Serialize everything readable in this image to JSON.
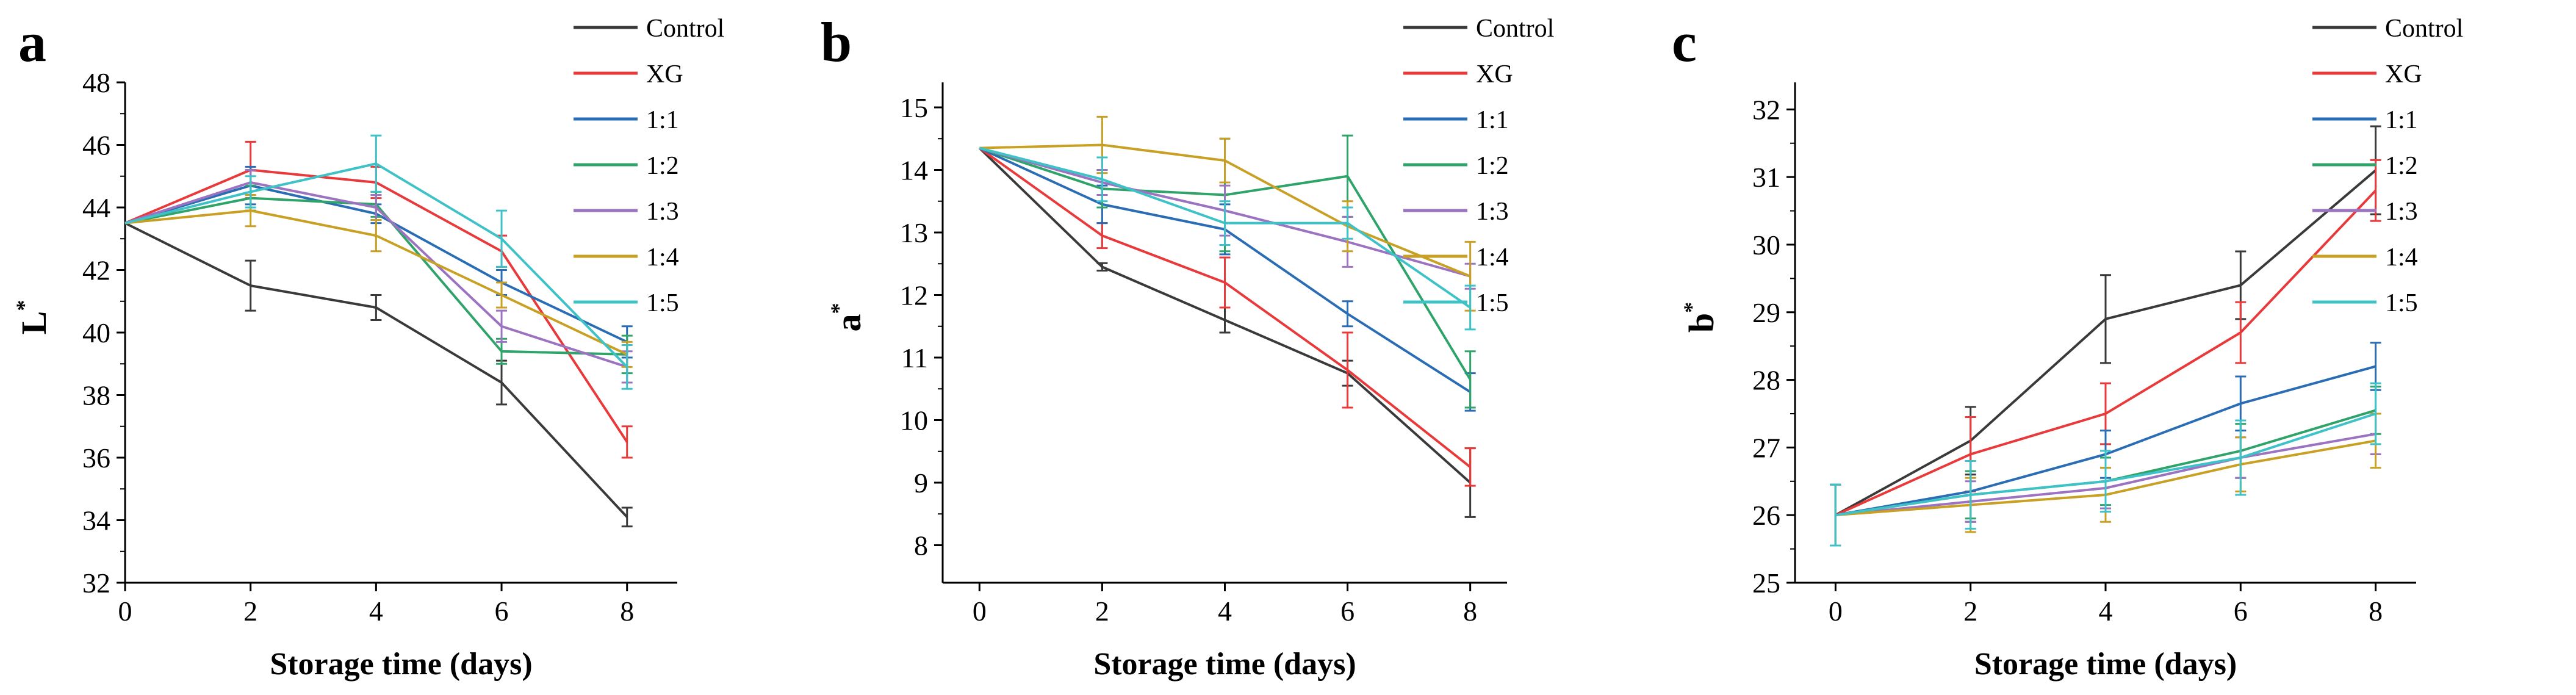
{
  "chart_data": [
    {
      "type": "line",
      "panel_label": "a",
      "title": "",
      "xlabel": "Storage time (days)",
      "ylabel": "L",
      "ylabel_sup": "*",
      "x": [
        0,
        2,
        4,
        6,
        8
      ],
      "xticks": [
        "0",
        "2",
        "4",
        "6",
        "8"
      ],
      "xlim": [
        0,
        8.8
      ],
      "ylim": [
        32,
        48
      ],
      "yticks": [
        "32",
        "34",
        "36",
        "38",
        "40",
        "42",
        "44",
        "46",
        "48"
      ],
      "grid": false,
      "legend": "top-right",
      "series": [
        {
          "name": "Control",
          "color": "#3a3a3a",
          "values": [
            43.5,
            41.5,
            40.8,
            38.4,
            34.1
          ],
          "errors": [
            0,
            0.8,
            0.4,
            0.7,
            0.3
          ]
        },
        {
          "name": "XG",
          "color": "#e8393b",
          "values": [
            43.5,
            45.2,
            44.8,
            42.6,
            36.5
          ],
          "errors": [
            0,
            0.9,
            0.5,
            0.5,
            0.5
          ]
        },
        {
          "name": "1:1",
          "color": "#2a6db5",
          "values": [
            43.5,
            44.7,
            43.8,
            41.6,
            39.7
          ],
          "errors": [
            0,
            0.6,
            0.3,
            0.4,
            0.5
          ]
        },
        {
          "name": "1:2",
          "color": "#30a36b",
          "values": [
            43.5,
            44.3,
            44.1,
            39.4,
            39.3
          ],
          "errors": [
            0,
            0.4,
            0.4,
            0.4,
            0.6
          ]
        },
        {
          "name": "1:3",
          "color": "#9c73c0",
          "values": [
            43.5,
            44.8,
            44.0,
            40.2,
            38.9
          ],
          "errors": [
            0,
            0.4,
            0.4,
            0.5,
            0.5
          ]
        },
        {
          "name": "1:4",
          "color": "#c8a024",
          "values": [
            43.5,
            43.9,
            43.1,
            41.2,
            39.3
          ],
          "errors": [
            0,
            0.5,
            0.5,
            0.4,
            0.4
          ]
        },
        {
          "name": "1:5",
          "color": "#3ec2c8",
          "values": [
            43.5,
            44.5,
            45.4,
            43.0,
            38.9
          ],
          "errors": [
            0,
            0.5,
            0.9,
            0.9,
            0.7
          ]
        }
      ]
    },
    {
      "type": "line",
      "panel_label": "b",
      "title": "",
      "xlabel": "Storage time (days)",
      "ylabel": "a",
      "ylabel_sup": "*",
      "x": [
        0,
        2,
        4,
        6,
        8
      ],
      "xticks": [
        "0",
        "2",
        "4",
        "6",
        "8"
      ],
      "xlim": [
        -0.6,
        8.6
      ],
      "ylim": [
        7.4,
        15.4
      ],
      "yticks": [
        "8",
        "9",
        "10",
        "11",
        "12",
        "13",
        "14",
        "15"
      ],
      "grid": false,
      "legend": "top-right",
      "series": [
        {
          "name": "Control",
          "color": "#3a3a3a",
          "values": [
            14.35,
            12.45,
            11.6,
            10.75,
            9.0
          ],
          "errors": [
            0,
            0.06,
            0.2,
            0.2,
            0.55
          ]
        },
        {
          "name": "XG",
          "color": "#e8393b",
          "values": [
            14.35,
            12.95,
            12.2,
            10.8,
            9.25
          ],
          "errors": [
            0,
            0.2,
            0.4,
            0.6,
            0.3
          ]
        },
        {
          "name": "1:1",
          "color": "#2a6db5",
          "values": [
            14.35,
            13.45,
            13.05,
            11.7,
            10.45
          ],
          "errors": [
            0,
            0.3,
            0.4,
            0.2,
            0.3
          ]
        },
        {
          "name": "1:2",
          "color": "#30a36b",
          "values": [
            14.35,
            13.7,
            13.6,
            13.9,
            10.65
          ],
          "errors": [
            0,
            0.3,
            0.9,
            0.65,
            0.45
          ]
        },
        {
          "name": "1:3",
          "color": "#9c73c0",
          "values": [
            14.35,
            13.8,
            13.35,
            12.85,
            12.3
          ],
          "errors": [
            0,
            0.2,
            0.4,
            0.4,
            0.2
          ]
        },
        {
          "name": "1:4",
          "color": "#c8a024",
          "values": [
            14.35,
            14.4,
            14.15,
            13.1,
            12.3
          ],
          "errors": [
            0,
            0.45,
            0.35,
            0.4,
            0.55
          ]
        },
        {
          "name": "1:5",
          "color": "#3ec2c8",
          "values": [
            14.35,
            13.85,
            13.15,
            13.15,
            11.8
          ],
          "errors": [
            0,
            0.35,
            0.35,
            0.25,
            0.35
          ]
        }
      ]
    },
    {
      "type": "line",
      "panel_label": "c",
      "title": "",
      "xlabel": "Storage time (days)",
      "ylabel": "b",
      "ylabel_sup": "*",
      "x": [
        0,
        2,
        4,
        6,
        8
      ],
      "xticks": [
        "0",
        "2",
        "4",
        "6",
        "8"
      ],
      "xlim": [
        -0.6,
        8.6
      ],
      "ylim": [
        25,
        32.4
      ],
      "yticks": [
        "25",
        "26",
        "27",
        "28",
        "29",
        "30",
        "31",
        "32"
      ],
      "grid": false,
      "legend": "top-right",
      "series": [
        {
          "name": "Control",
          "color": "#3a3a3a",
          "values": [
            26.0,
            27.1,
            28.9,
            29.4,
            31.1
          ],
          "errors": [
            0.45,
            0.5,
            0.65,
            0.5,
            0.65
          ]
        },
        {
          "name": "XG",
          "color": "#e8393b",
          "values": [
            26.0,
            26.9,
            27.5,
            28.7,
            30.8
          ],
          "errors": [
            0.45,
            0.55,
            0.45,
            0.45,
            0.45
          ]
        },
        {
          "name": "1:1",
          "color": "#2a6db5",
          "values": [
            26.0,
            26.35,
            26.9,
            27.65,
            28.2
          ],
          "errors": [
            0.45,
            0.45,
            0.35,
            0.4,
            0.35
          ]
        },
        {
          "name": "1:2",
          "color": "#30a36b",
          "values": [
            26.0,
            26.3,
            26.5,
            26.95,
            27.55
          ],
          "errors": [
            0.45,
            0.35,
            0.35,
            0.4,
            0.35
          ]
        },
        {
          "name": "1:3",
          "color": "#9c73c0",
          "values": [
            26.0,
            26.2,
            26.4,
            26.85,
            27.2
          ],
          "errors": [
            0.45,
            0.3,
            0.3,
            0.3,
            0.3
          ]
        },
        {
          "name": "1:4",
          "color": "#c8a024",
          "values": [
            26.0,
            26.15,
            26.3,
            26.75,
            27.1
          ],
          "errors": [
            0.45,
            0.4,
            0.4,
            0.4,
            0.4
          ]
        },
        {
          "name": "1:5",
          "color": "#3ec2c8",
          "values": [
            26.0,
            26.3,
            26.5,
            26.85,
            27.5
          ],
          "errors": [
            0.45,
            0.5,
            0.45,
            0.55,
            0.45
          ]
        }
      ]
    }
  ]
}
